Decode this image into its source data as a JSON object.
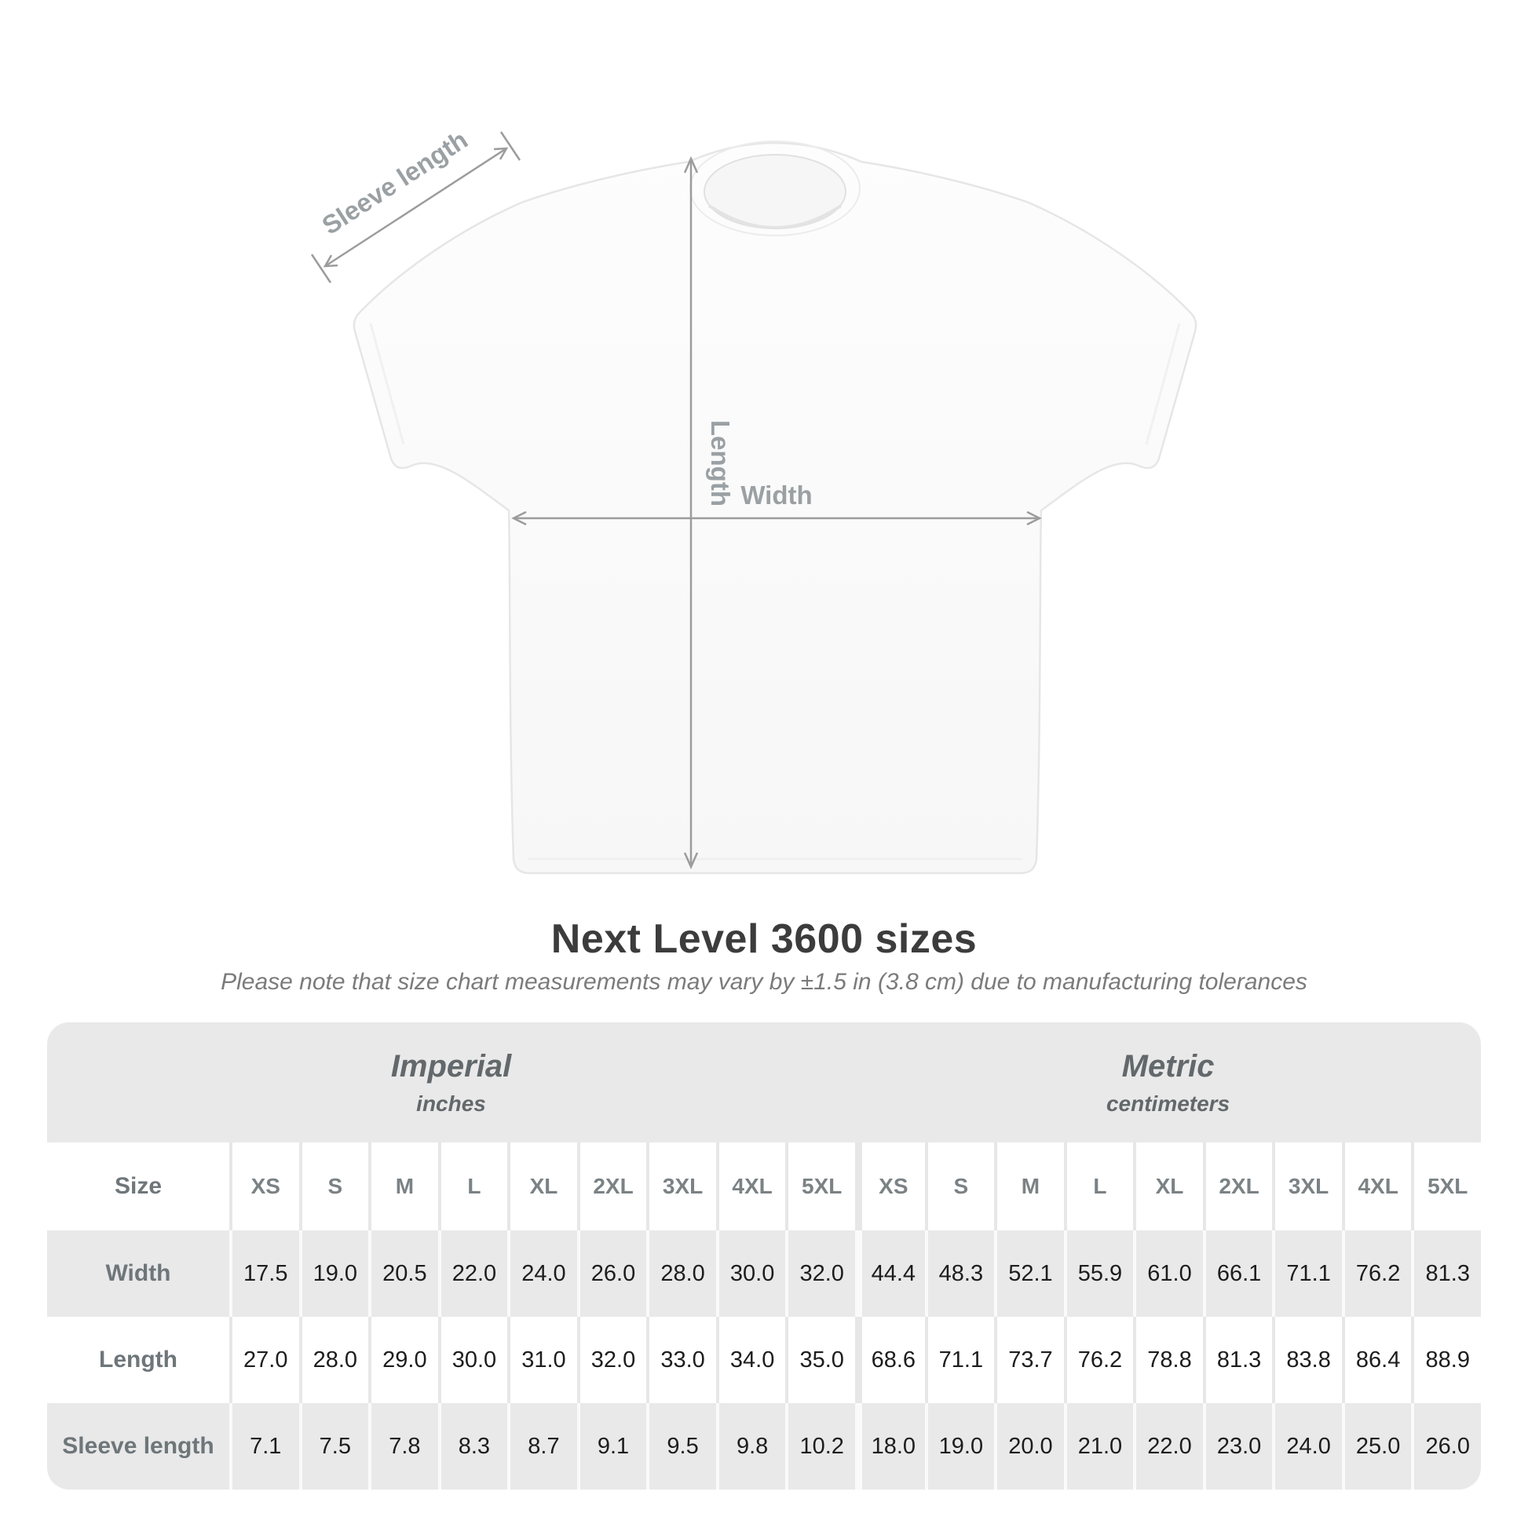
{
  "heading": {
    "title": "Next Level 3600 sizes",
    "subtitle": "Please note that size chart measurements may vary by ±1.5 in (3.8 cm) due to manufacturing tolerances"
  },
  "diagram": {
    "sleeve_label": "Sleeve length",
    "length_label": "Length",
    "width_label": "Width"
  },
  "colors": {
    "band_gray": "#e9e9e9",
    "row_gray": "#e9e9e9",
    "dimension_line": "#9c9c9c",
    "dimension_text": "#9aa0a3",
    "value_ink": "#1d1d1d",
    "header_ink": "#7b8285"
  },
  "chart_data": {
    "type": "table",
    "title": "Next Level 3600 sizes",
    "sections": [
      {
        "title": "Imperial",
        "unit": "inches"
      },
      {
        "title": "Metric",
        "unit": "centimeters"
      }
    ],
    "size_header_label": "Size",
    "sizes": [
      "XS",
      "S",
      "M",
      "L",
      "XL",
      "2XL",
      "3XL",
      "4XL",
      "5XL"
    ],
    "rows": [
      {
        "label": "Width",
        "imperial": [
          "17.5",
          "19.0",
          "20.5",
          "22.0",
          "24.0",
          "26.0",
          "28.0",
          "30.0",
          "32.0"
        ],
        "metric": [
          "44.4",
          "48.3",
          "52.1",
          "55.9",
          "61.0",
          "66.1",
          "71.1",
          "76.2",
          "81.3"
        ]
      },
      {
        "label": "Length",
        "imperial": [
          "27.0",
          "28.0",
          "29.0",
          "30.0",
          "31.0",
          "32.0",
          "33.0",
          "34.0",
          "35.0"
        ],
        "metric": [
          "68.6",
          "71.1",
          "73.7",
          "76.2",
          "78.8",
          "81.3",
          "83.8",
          "86.4",
          "88.9"
        ]
      },
      {
        "label": "Sleeve length",
        "imperial": [
          "7.1",
          "7.5",
          "7.8",
          "8.3",
          "8.7",
          "9.1",
          "9.5",
          "9.8",
          "10.2"
        ],
        "metric": [
          "18.0",
          "19.0",
          "20.0",
          "21.0",
          "22.0",
          "23.0",
          "24.0",
          "25.0",
          "26.0"
        ]
      }
    ]
  }
}
